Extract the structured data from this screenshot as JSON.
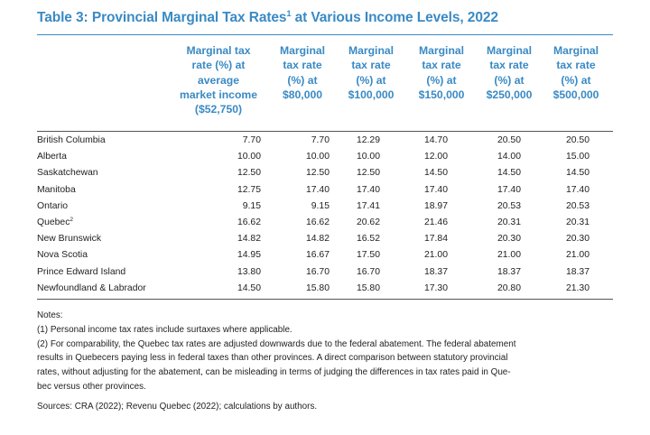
{
  "table": {
    "title": "Table 3: Provincial Marginal Tax Rates",
    "title_sup": "1",
    "title_rest": " at Various Income Levels, 2022",
    "columns": [
      "Marginal tax\nrate (%) at\naverage\nmarket income\n($52,750)",
      "Marginal\ntax rate\n(%) at\n$80,000",
      "Marginal\ntax rate\n(%) at\n$100,000",
      "Marginal\ntax rate\n(%) at\n$150,000",
      "Marginal\ntax rate\n(%) at\n$250,000",
      "Marginal\ntax rate\n(%) at\n$500,000"
    ],
    "rows": [
      {
        "province": "British Columbia",
        "sup": "",
        "values": [
          "7.70",
          "7.70",
          "12.29",
          "14.70",
          "20.50",
          "20.50"
        ]
      },
      {
        "province": "Alberta",
        "sup": "",
        "values": [
          "10.00",
          "10.00",
          "10.00",
          "12.00",
          "14.00",
          "15.00"
        ]
      },
      {
        "province": "Saskatchewan",
        "sup": "",
        "values": [
          "12.50",
          "12.50",
          "12.50",
          "14.50",
          "14.50",
          "14.50"
        ]
      },
      {
        "province": "Manitoba",
        "sup": "",
        "values": [
          "12.75",
          "17.40",
          "17.40",
          "17.40",
          "17.40",
          "17.40"
        ]
      },
      {
        "province": "Ontario",
        "sup": "",
        "values": [
          "9.15",
          "9.15",
          "17.41",
          "18.97",
          "20.53",
          "20.53"
        ]
      },
      {
        "province": "Quebec",
        "sup": "2",
        "values": [
          "16.62",
          "16.62",
          "20.62",
          "21.46",
          "20.31",
          "20.31"
        ]
      },
      {
        "province": "New Brunswick",
        "sup": "",
        "values": [
          "14.82",
          "14.82",
          "16.52",
          "17.84",
          "20.30",
          "20.30"
        ]
      },
      {
        "province": "Nova Scotia",
        "sup": "",
        "values": [
          "14.95",
          "16.67",
          "17.50",
          "21.00",
          "21.00",
          "21.00"
        ]
      },
      {
        "province": "Prince Edward Island",
        "sup": "",
        "values": [
          "13.80",
          "16.70",
          "16.70",
          "18.37",
          "18.37",
          "18.37"
        ]
      },
      {
        "province": "Newfoundland & Labrador",
        "sup": "",
        "values": [
          "14.50",
          "15.80",
          "15.80",
          "17.30",
          "20.80",
          "21.30"
        ]
      }
    ]
  },
  "notes": {
    "heading": "Notes:",
    "note1": "(1) Personal income tax rates include surtaxes where applicable.",
    "note2_lines": [
      "(2) For comparability, the Quebec tax rates are adjusted downwards due to the federal abatement. The federal abatement",
      "results in Quebecers paying less in federal taxes than other provinces. A direct comparison between statutory provincial",
      "rates, without adjusting for the abatement, can be misleading in terms of judging the differences in tax rates paid in Que-",
      "bec versus other provinces."
    ],
    "sources": "Sources: CRA (2022); Revenu Quebec (2022); calculations by authors."
  },
  "colors": {
    "accent": "#3a8ac4",
    "text": "#222222"
  }
}
